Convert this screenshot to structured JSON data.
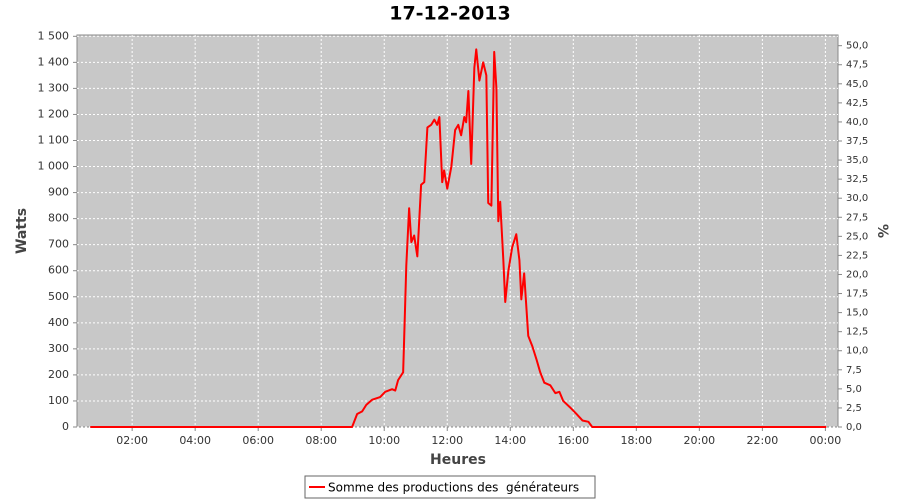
{
  "chart_data": {
    "type": "line",
    "title": "17-12-2013",
    "x_label": "Heures",
    "y_label": "Watts",
    "y2_label": "%",
    "grid": true,
    "legend_position": "bottom",
    "xlim": [
      0.25,
      24.4
    ],
    "xticks": [
      {
        "value": 2,
        "label": "02:00"
      },
      {
        "value": 4,
        "label": "04:00"
      },
      {
        "value": 6,
        "label": "06:00"
      },
      {
        "value": 8,
        "label": "08:00"
      },
      {
        "value": 10,
        "label": "10:00"
      },
      {
        "value": 12,
        "label": "12:00"
      },
      {
        "value": 14,
        "label": "14:00"
      },
      {
        "value": 16,
        "label": "16:00"
      },
      {
        "value": 18,
        "label": "18:00"
      },
      {
        "value": 20,
        "label": "20:00"
      },
      {
        "value": 22,
        "label": "22:00"
      },
      {
        "value": 24,
        "label": "00:00"
      }
    ],
    "ylim": [
      0,
      1505
    ],
    "yticks": [
      0,
      100,
      200,
      300,
      400,
      500,
      600,
      700,
      800,
      900,
      {
        "value": 1000,
        "label": "1 000"
      },
      {
        "value": 1100,
        "label": "1 100"
      },
      {
        "value": 1200,
        "label": "1 200"
      },
      {
        "value": 1300,
        "label": "1 300"
      },
      {
        "value": 1400,
        "label": "1 400"
      },
      {
        "value": 1500,
        "label": "1 500"
      }
    ],
    "y2lim": [
      0,
      51.4
    ],
    "y2ticks": [
      {
        "value": 0,
        "label": "0,0"
      },
      {
        "value": 2.5,
        "label": "2,5"
      },
      {
        "value": 5,
        "label": "5,0"
      },
      {
        "value": 7.5,
        "label": "7,5"
      },
      {
        "value": 10,
        "label": "10,0"
      },
      {
        "value": 12.5,
        "label": "12,5"
      },
      {
        "value": 15,
        "label": "15,0"
      },
      {
        "value": 17.5,
        "label": "17,5"
      },
      {
        "value": 20,
        "label": "20,0"
      },
      {
        "value": 22.5,
        "label": "22,5"
      },
      {
        "value": 25,
        "label": "25,0"
      },
      {
        "value": 27.5,
        "label": "27,5"
      },
      {
        "value": 30,
        "label": "30,0"
      },
      {
        "value": 32.5,
        "label": "32,5"
      },
      {
        "value": 35,
        "label": "35,0"
      },
      {
        "value": 37.5,
        "label": "37,5"
      },
      {
        "value": 40,
        "label": "40,0"
      },
      {
        "value": 42.5,
        "label": "42,5"
      },
      {
        "value": 45,
        "label": "45,0"
      },
      {
        "value": 47.5,
        "label": "47,5"
      },
      {
        "value": 50,
        "label": "50,0"
      }
    ],
    "x": [
      0.67,
      8.98,
      9.14,
      9.3,
      9.43,
      9.62,
      9.87,
      10.03,
      10.25,
      10.35,
      10.44,
      10.6,
      10.63,
      10.7,
      10.79,
      10.86,
      10.95,
      11.05,
      11.17,
      11.27,
      11.37,
      11.49,
      11.59,
      11.68,
      11.75,
      11.84,
      11.9,
      12.0,
      12.13,
      12.25,
      12.35,
      12.44,
      12.54,
      12.6,
      12.67,
      12.76,
      12.86,
      12.92,
      13.02,
      13.14,
      13.24,
      13.3,
      13.4,
      13.49,
      13.56,
      13.62,
      13.68,
      13.78,
      13.84,
      13.94,
      14.06,
      14.19,
      14.29,
      14.35,
      14.44,
      14.57,
      14.7,
      14.83,
      14.95,
      15.08,
      15.27,
      15.43,
      15.56,
      15.68,
      15.9,
      16.1,
      16.29,
      16.48,
      16.6,
      24.03
    ],
    "series": [
      {
        "name": "Somme des productions des  générateurs",
        "color": "#ff0000",
        "values": [
          0,
          0,
          50,
          60,
          85,
          105,
          115,
          135,
          145,
          140,
          180,
          210,
          330,
          620,
          840,
          710,
          735,
          655,
          930,
          940,
          1150,
          1160,
          1180,
          1160,
          1190,
          940,
          985,
          915,
          1000,
          1140,
          1160,
          1120,
          1190,
          1170,
          1290,
          1010,
          1380,
          1450,
          1330,
          1400,
          1350,
          860,
          850,
          1440,
          1300,
          790,
          865,
          640,
          480,
          600,
          690,
          740,
          640,
          490,
          590,
          350,
          310,
          260,
          210,
          170,
          160,
          130,
          135,
          100,
          75,
          50,
          25,
          20,
          0,
          0
        ]
      }
    ]
  }
}
